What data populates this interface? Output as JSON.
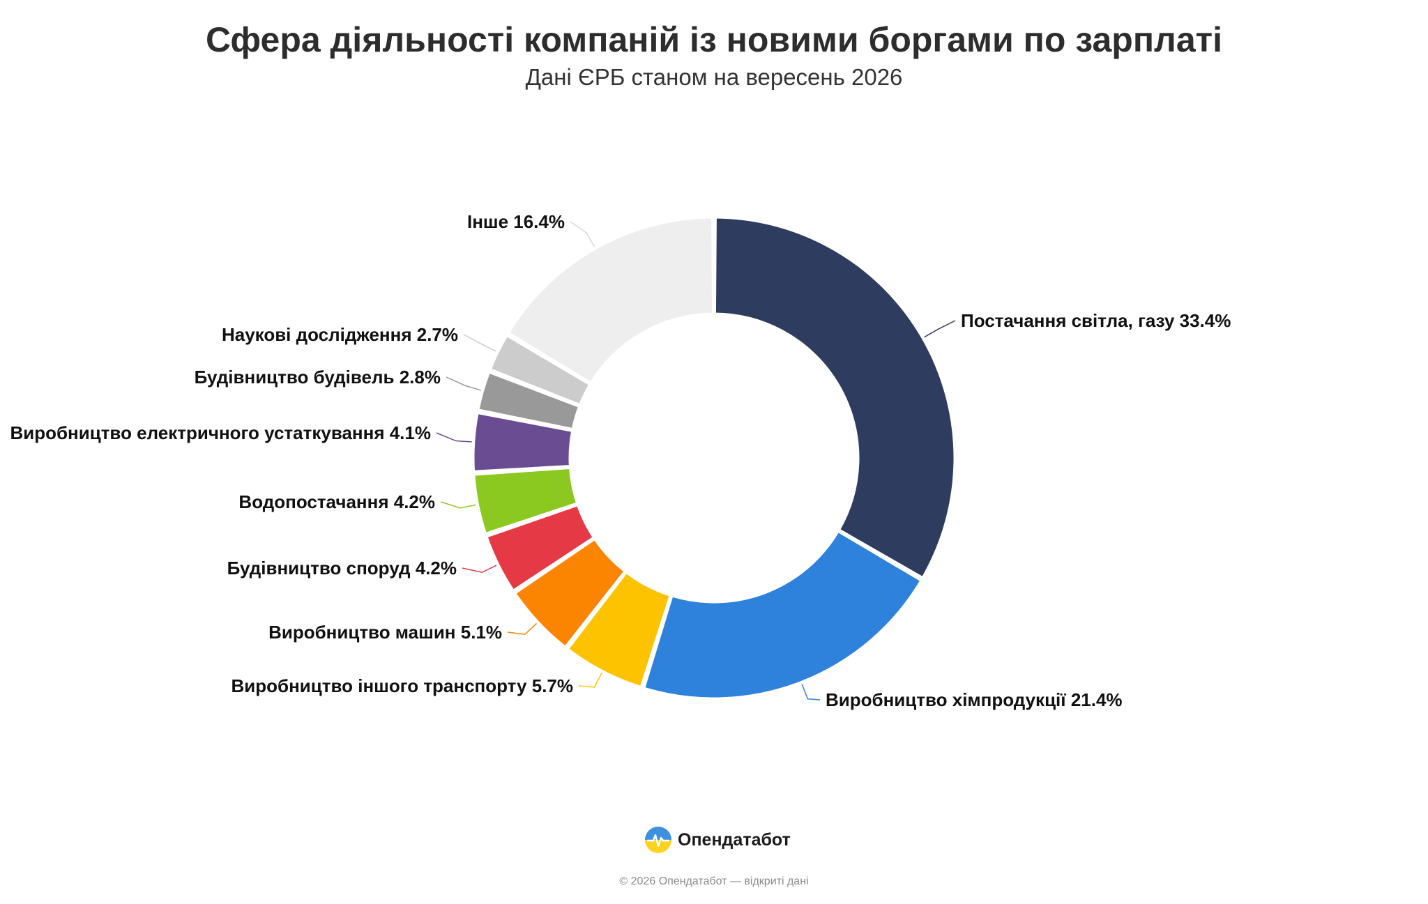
{
  "header": {
    "title": "Сфера діяльності компаній із новими боргами по зарплаті",
    "subtitle": "Дані ЄРБ станом на вересень 2026"
  },
  "chart_data": {
    "type": "pie",
    "donut": true,
    "title": "Сфера діяльності компаній із новими боргами по зарплаті",
    "subtitle": "Дані ЄРБ станом на вересень 2026",
    "series": [
      {
        "values": [
          33.4,
          21.4,
          5.7,
          5.1,
          4.2,
          4.2,
          4.1,
          2.8,
          2.7,
          16.4
        ],
        "categories": [
          "Постачання світла, газу",
          "Виробництво хімпродукції",
          "Виробництво іншого транспорту",
          "Виробництво машин",
          "Будівництво споруд",
          "Водопостачання",
          "Виробництво електричного устаткування",
          "Будівництво будівель",
          "Наукові дослідження",
          "Інше"
        ],
        "labels": [
          "Постачання світла, газу 33.4%",
          "Виробництво хімпродукції 21.4%",
          "Виробництво іншого транспорту 5.7%",
          "Виробництво машин 5.1%",
          "Будівництво споруд 4.2%",
          "Водопостачання 4.2%",
          "Виробництво електричного устаткування 4.1%",
          "Будівництво будівель 2.8%",
          "Наукові дослідження 2.7%",
          "Інше 16.4%"
        ],
        "colors": [
          "#2e3d5f",
          "#2e82dc",
          "#fdc300",
          "#fb8500",
          "#e63946",
          "#8bc820",
          "#6a4c93",
          "#999999",
          "#cccccc",
          "#eeeeee"
        ]
      }
    ],
    "legend": "none"
  },
  "footer": {
    "brand": "Опендатабот",
    "copyright": "© 2026 Опендатабот — відкриті дані"
  }
}
